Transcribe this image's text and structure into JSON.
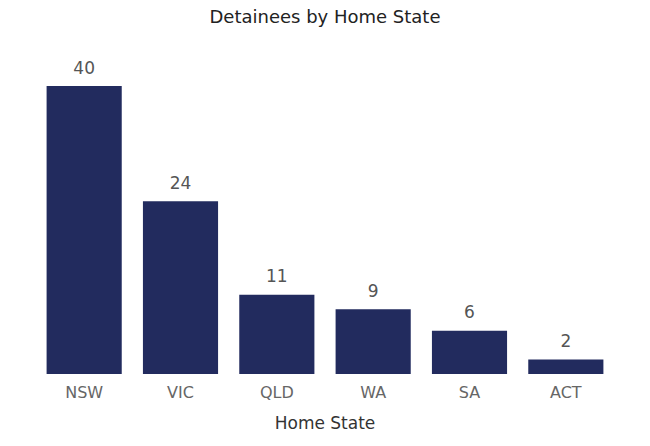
{
  "chart_data": {
    "type": "bar",
    "title": "Detainees by Home State",
    "x_label": "Home State",
    "categories": [
      "NSW",
      "VIC",
      "QLD",
      "WA",
      "SA",
      "ACT"
    ],
    "values": [
      40,
      24,
      11,
      9,
      6,
      2
    ],
    "color": "#222b5e",
    "ylim": [
      0,
      40
    ],
    "grid": false,
    "data_labels": true,
    "tick_labels": "x"
  }
}
